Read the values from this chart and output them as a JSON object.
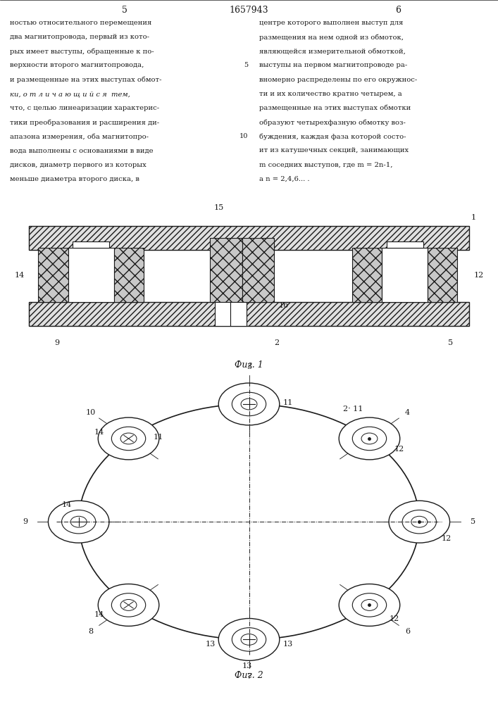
{
  "page_number_left": "5",
  "page_number_center": "1657943",
  "page_number_right": "6",
  "text_left": "ностью относительного перемещения\nдва магнитопровода, первый из кото-\nрых имеет выступы, обращенные к по-\nверхности второго магнитопровода,\nи размещенные на этих выступах обмот-\nки, о т л и ч а ю щ и й с я  тем,\nчто, с целью линеаризации характерис-\nтики преобразования и расширения ди-\nапазона измерения, оба магнитопро-\nвода выполнены с основаниями в виде\nдисков, диаметр первого из которых\nменьше диаметра второго диска, в",
  "text_right": "центре которого выполнен выступ для\nразмещения на нем одной из обмоток,\nявляющейся измерительной обмоткой,\nвыступы на первом магнитопроводе ра-\nвномерно распределены по его окружнос-\nти и их количество кратно четырем, а\nразмещенные на этих выступах обмотки\nобразуют четырехфазную обмотку воз-\nбуждения, каждая фаза которой состо-\nит из катушечных секций, занимающих\nm соседних выступов, где m = 2n-1,\nа n = 2,4,6... .",
  "fig1_caption": "Фиг. 1",
  "fig2_caption": "Фиг. 2",
  "bg_color": "#ffffff",
  "line_color": "#1a1a1a",
  "text_color": "#1a1a1a"
}
